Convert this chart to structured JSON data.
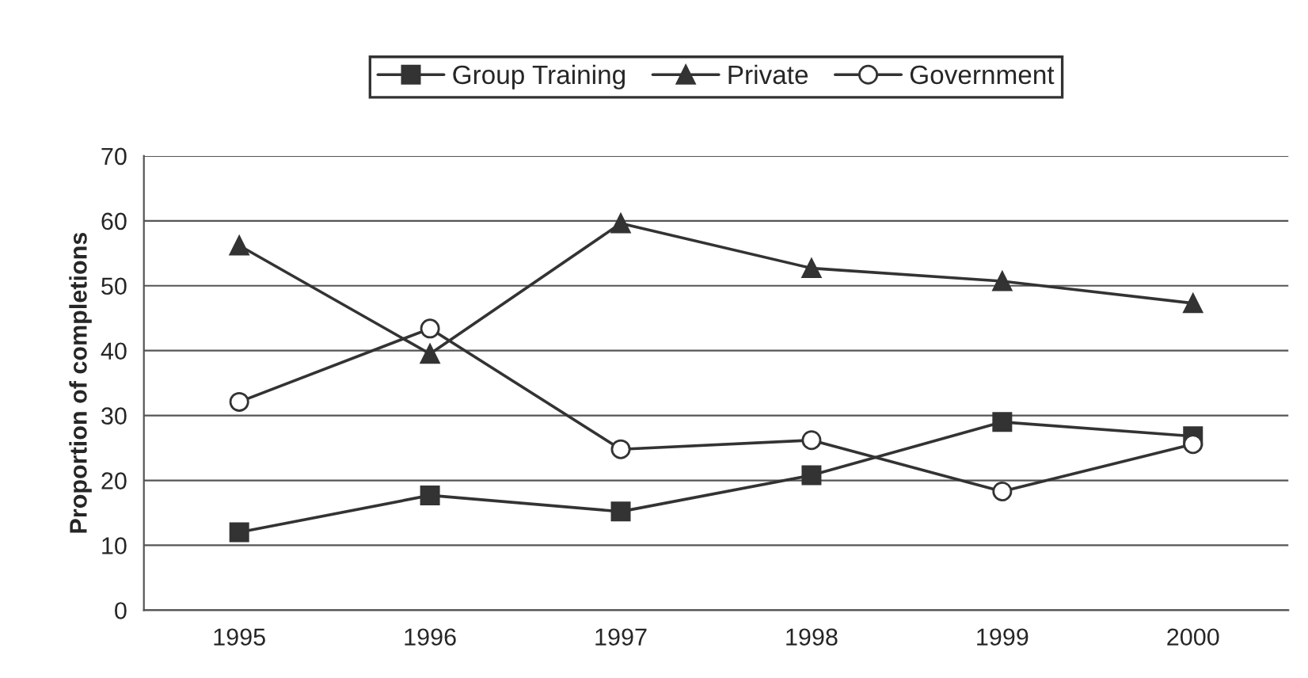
{
  "chart_data": {
    "type": "line",
    "ylabel": "Proportion of completions",
    "categories": [
      "1995",
      "1996",
      "1997",
      "1998",
      "1999",
      "2000"
    ],
    "series": [
      {
        "name": "Group Training",
        "color": "#333333",
        "marker": "square",
        "values": [
          12,
          17.7,
          15.2,
          20.8,
          29,
          26.8
        ]
      },
      {
        "name": "Private",
        "color": "#333333",
        "marker": "triangle",
        "values": [
          56.2,
          39.5,
          59.6,
          52.7,
          50.7,
          47.3
        ]
      },
      {
        "name": "Government",
        "color": "#333333",
        "marker": "circle",
        "values": [
          32.1,
          43.4,
          24.8,
          26.2,
          18.3,
          25.6
        ]
      }
    ],
    "ylim": [
      0,
      70
    ],
    "yticks": [
      0,
      10,
      20,
      30,
      40,
      50,
      60,
      70
    ],
    "grid": "y",
    "legend": "top",
    "line_style": "solid"
  }
}
